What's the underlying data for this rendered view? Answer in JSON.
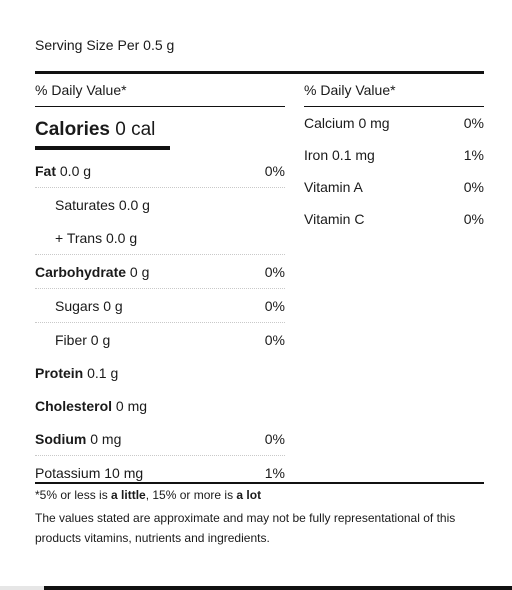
{
  "serving": "Serving Size Per 0.5 g",
  "left": {
    "dv_header": "% Daily Value*",
    "calories": {
      "label": "Calories",
      "value": "0 cal"
    },
    "rows": [
      {
        "name": "Fat",
        "amount": "0.0 g",
        "pct": "0%"
      },
      {
        "name": "Saturates",
        "amount": "0.0 g",
        "pct": ""
      },
      {
        "name": "+ Trans",
        "amount": "0.0 g",
        "pct": ""
      },
      {
        "name": "Carbohydrate",
        "amount": "0 g",
        "pct": "0%"
      },
      {
        "name": "Sugars",
        "amount": "0 g",
        "pct": "0%"
      },
      {
        "name": "Fiber",
        "amount": "0 g",
        "pct": "0%"
      },
      {
        "name": "Protein",
        "amount": "0.1 g",
        "pct": ""
      },
      {
        "name": "Cholesterol",
        "amount": "0 mg",
        "pct": ""
      },
      {
        "name": "Sodium",
        "amount": "0 mg",
        "pct": "0%"
      },
      {
        "name": "Potassium",
        "amount": "10 mg",
        "pct": "1%"
      }
    ]
  },
  "right": {
    "dv_header": "% Daily Value*",
    "rows": [
      {
        "label": "Calcium 0 mg",
        "pct": "0%"
      },
      {
        "label": "Iron 0.1 mg",
        "pct": "1%"
      },
      {
        "label": "Vitamin A",
        "pct": "0%"
      },
      {
        "label": "Vitamin C",
        "pct": "0%"
      }
    ]
  },
  "footnote": {
    "p1": "*5% or less is ",
    "b1": "a little",
    "p2": ", 15% or more is ",
    "b2": "a lot",
    "disclaimer": "The values stated are approximate and may not be fully representational of this products vitamins, nutrients and ingredients."
  }
}
